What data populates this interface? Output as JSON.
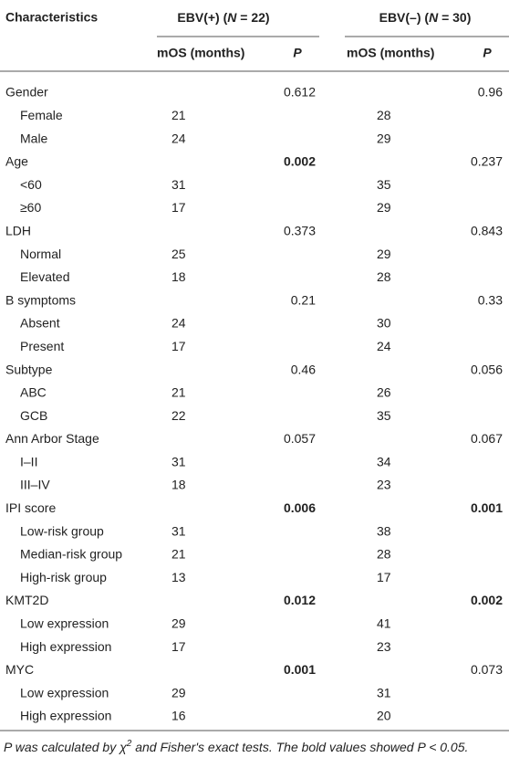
{
  "table": {
    "header": {
      "characteristics": "Characteristics",
      "groups": [
        {
          "parts": [
            "EBV(+) (",
            "N",
            " = 22)"
          ],
          "mos": "mOS (months)",
          "p": "P"
        },
        {
          "parts": [
            "EBV(–) (",
            "N",
            " = 30)"
          ],
          "mos": "mOS (months)",
          "p": "P"
        }
      ]
    },
    "rows": [
      {
        "label": "Gender",
        "pos_p": "0.612",
        "neg_p": "0.96"
      },
      {
        "label": "Female",
        "sub": true,
        "pos_mos": "21",
        "neg_mos": "28"
      },
      {
        "label": "Male",
        "sub": true,
        "pos_mos": "24",
        "neg_mos": "29"
      },
      {
        "label": "Age",
        "pos_p": "0.002",
        "pos_p_bold": true,
        "neg_p": "0.237"
      },
      {
        "label": "<60",
        "sub": true,
        "pos_mos": "31",
        "neg_mos": "35"
      },
      {
        "label": "≥60",
        "sub": true,
        "pos_mos": "17",
        "neg_mos": "29"
      },
      {
        "label": "LDH",
        "pos_p": "0.373",
        "neg_p": "0.843"
      },
      {
        "label": "Normal",
        "sub": true,
        "pos_mos": "25",
        "neg_mos": "29"
      },
      {
        "label": "Elevated",
        "sub": true,
        "pos_mos": "18",
        "neg_mos": "28"
      },
      {
        "label": "B symptoms",
        "pos_p": "0.21",
        "neg_p": "0.33"
      },
      {
        "label": "Absent",
        "sub": true,
        "pos_mos": "24",
        "neg_mos": "30"
      },
      {
        "label": "Present",
        "sub": true,
        "pos_mos": "17",
        "neg_mos": "24"
      },
      {
        "label": "Subtype",
        "pos_p": "0.46",
        "neg_p": "0.056"
      },
      {
        "label": "ABC",
        "sub": true,
        "pos_mos": "21",
        "neg_mos": "26"
      },
      {
        "label": "GCB",
        "sub": true,
        "pos_mos": "22",
        "neg_mos": "35"
      },
      {
        "label": "Ann Arbor Stage",
        "pos_p": "0.057",
        "neg_p": "0.067"
      },
      {
        "label": "I–II",
        "sub": true,
        "pos_mos": "31",
        "neg_mos": "34"
      },
      {
        "label": "III–IV",
        "sub": true,
        "pos_mos": "18",
        "neg_mos": "23"
      },
      {
        "label": "IPI score",
        "pos_p": "0.006",
        "pos_p_bold": true,
        "neg_p": "0.001",
        "neg_p_bold": true
      },
      {
        "label": "Low-risk group",
        "sub": true,
        "pos_mos": "31",
        "neg_mos": "38"
      },
      {
        "label": "Median-risk group",
        "sub": true,
        "pos_mos": "21",
        "neg_mos": "28"
      },
      {
        "label": "High-risk group",
        "sub": true,
        "pos_mos": "13",
        "neg_mos": "17"
      },
      {
        "label": "KMT2D",
        "pos_p": "0.012",
        "pos_p_bold": true,
        "neg_p": "0.002",
        "neg_p_bold": true
      },
      {
        "label": "Low expression",
        "sub": true,
        "pos_mos": "29",
        "neg_mos": "41"
      },
      {
        "label": "High expression",
        "sub": true,
        "pos_mos": "17",
        "neg_mos": "23"
      },
      {
        "label": "MYC",
        "pos_p": "0.001",
        "pos_p_bold": true,
        "neg_p": "0.073"
      },
      {
        "label": "Low expression",
        "sub": true,
        "pos_mos": "29",
        "neg_mos": "31"
      },
      {
        "label": "High expression",
        "sub": true,
        "pos_mos": "16",
        "neg_mos": "20"
      }
    ],
    "footnote": [
      "P was calculated by χ",
      "2",
      " and Fisher's exact tests. The bold values showed P < 0.05."
    ]
  }
}
